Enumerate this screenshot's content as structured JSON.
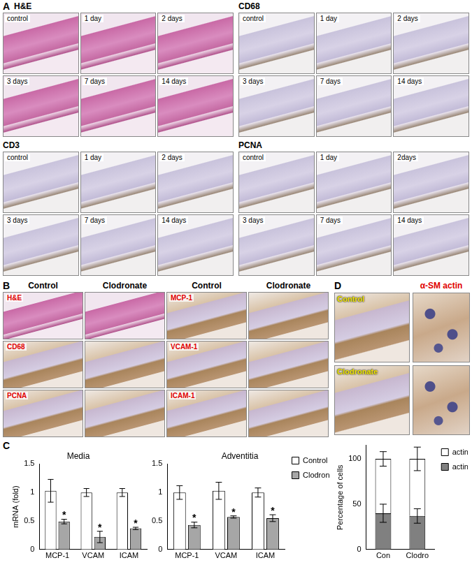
{
  "panels": {
    "A": {
      "label": "A",
      "groups": [
        {
          "title": "H&E",
          "images": [
            "control",
            "1 day",
            "2 days",
            "3 days",
            "7 days",
            "14 days"
          ]
        },
        {
          "title": "CD68",
          "images": [
            "control",
            "1 day",
            "2 days",
            "3 days",
            "7 days",
            "14 days"
          ]
        },
        {
          "title": "CD3",
          "images": [
            "control",
            "1 day",
            "2 days",
            "3 days",
            "7 days",
            "14 days"
          ]
        },
        {
          "title": "PCNA",
          "images": [
            "control",
            "1 day",
            "2days",
            "3 days",
            "7 days",
            "14 days"
          ]
        }
      ]
    },
    "B": {
      "label": "B",
      "columns": [
        "Control",
        "Clodronate",
        "Control",
        "Clodronate"
      ],
      "rows": [
        [
          "H&E",
          "MCP-1"
        ],
        [
          "CD68",
          "VCAM-1"
        ],
        [
          "PCNA",
          "ICAM-1"
        ]
      ]
    },
    "C": {
      "label": "C"
    },
    "D": {
      "label": "D",
      "images": [
        "Control",
        "Clodronate"
      ],
      "zoom_title": "α-SM actin"
    }
  },
  "chart_data": [
    {
      "type": "bar",
      "title": "Media",
      "y_label": "mRNA (fold)",
      "categories": [
        "MCP-1",
        "VCAM",
        "ICAM"
      ],
      "series": [
        {
          "name": "Control",
          "color": "#ffffff",
          "values": [
            1.03,
            1.0,
            1.0
          ],
          "errors": [
            0.2,
            0.07,
            0.07
          ]
        },
        {
          "name": "Clodronate",
          "color": "#a6a6a6",
          "values": [
            0.49,
            0.22,
            0.37
          ],
          "errors": [
            0.04,
            0.1,
            0.02
          ],
          "annotations": [
            "*",
            "*",
            "*"
          ]
        }
      ],
      "ylim": [
        0,
        1.5
      ],
      "yticks": [
        0,
        0.5,
        1,
        1.5
      ],
      "grid": false
    },
    {
      "type": "bar",
      "title": "Adventitia",
      "categories": [
        "MCP-1",
        "VCAM",
        "ICAM"
      ],
      "series": [
        {
          "name": "Control",
          "color": "#ffffff",
          "values": [
            1.0,
            1.03,
            1.0
          ],
          "errors": [
            0.12,
            0.15,
            0.08
          ]
        },
        {
          "name": "Clodronate",
          "color": "#a6a6a6",
          "values": [
            0.43,
            0.57,
            0.55
          ],
          "errors": [
            0.05,
            0.02,
            0.06
          ],
          "annotations": [
            "*",
            "*",
            "*"
          ]
        }
      ],
      "ylim": [
        0,
        1.5
      ],
      "yticks": [
        0,
        0.5,
        1,
        1.5
      ],
      "grid": false,
      "legend": "top right"
    },
    {
      "type": "bar",
      "y_label": "Percentage of cells",
      "categories": [
        "Con",
        "Clodro"
      ],
      "series": [
        {
          "name": "actin⁺",
          "color": "#808080",
          "values": [
            40,
            37
          ],
          "errors": [
            10,
            8
          ]
        },
        {
          "name": "actin⁻",
          "color": "#ffffff",
          "values": [
            60,
            63
          ],
          "errors": [
            8,
            13
          ]
        }
      ],
      "ylim": [
        0,
        115
      ],
      "yticks": [
        0,
        50,
        100
      ],
      "grid": false,
      "stacked": true,
      "legend": "top right"
    }
  ]
}
